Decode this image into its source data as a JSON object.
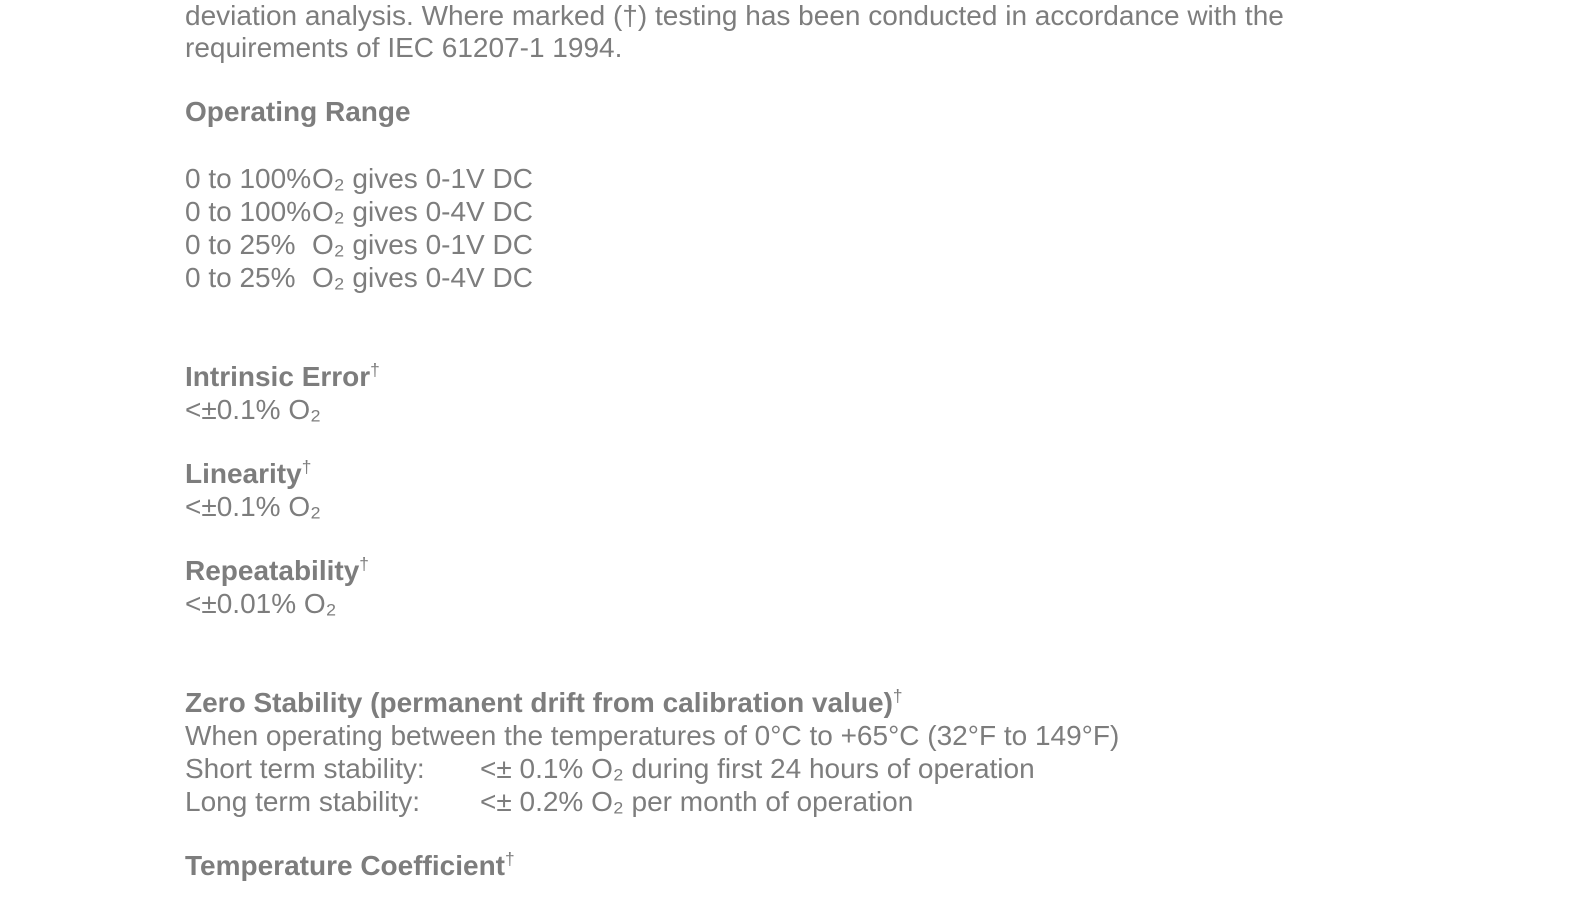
{
  "colors": {
    "text": "#7d7d7d",
    "background": "#ffffff"
  },
  "document": {
    "intro_lines": [
      "deviation analysis. Where marked (†) testing has been conducted in accordance with the",
      "requirements of IEC 61207-1 1994."
    ],
    "operating_range": {
      "heading": "Operating Range",
      "rows": [
        {
          "range": "0 to 100%",
          "rest": "O₂ gives 0-1V DC"
        },
        {
          "range": "0 to 100%",
          "rest": "O₂ gives 0-4V DC"
        },
        {
          "range": "0 to 25%",
          "rest": "O₂ gives 0-1V DC"
        },
        {
          "range": "0 to 25%",
          "rest": "O₂ gives 0-4V DC"
        }
      ]
    },
    "specs": [
      {
        "heading": "Intrinsic Error",
        "dagger": "†",
        "value": "<±0.1% O₂"
      },
      {
        "heading": "Linearity",
        "dagger": "†",
        "value": "<±0.1% O₂"
      },
      {
        "heading": "Repeatability",
        "dagger": "†",
        "value": "<±0.01% O₂"
      }
    ],
    "zero_stability": {
      "heading": "Zero Stability (permanent drift from calibration value)",
      "dagger": "†",
      "condition": "When operating between the temperatures of 0°C to +65°C (32°F to 149°F)",
      "rows": [
        {
          "label": "Short term stability:",
          "value": "<± 0.1% O₂ during first 24 hours of operation"
        },
        {
          "label": "Long term stability:",
          "value": "<± 0.2% O₂ per month of operation"
        }
      ]
    },
    "temperature_coefficient": {
      "heading": "Temperature Coefficient",
      "dagger": "†"
    }
  }
}
